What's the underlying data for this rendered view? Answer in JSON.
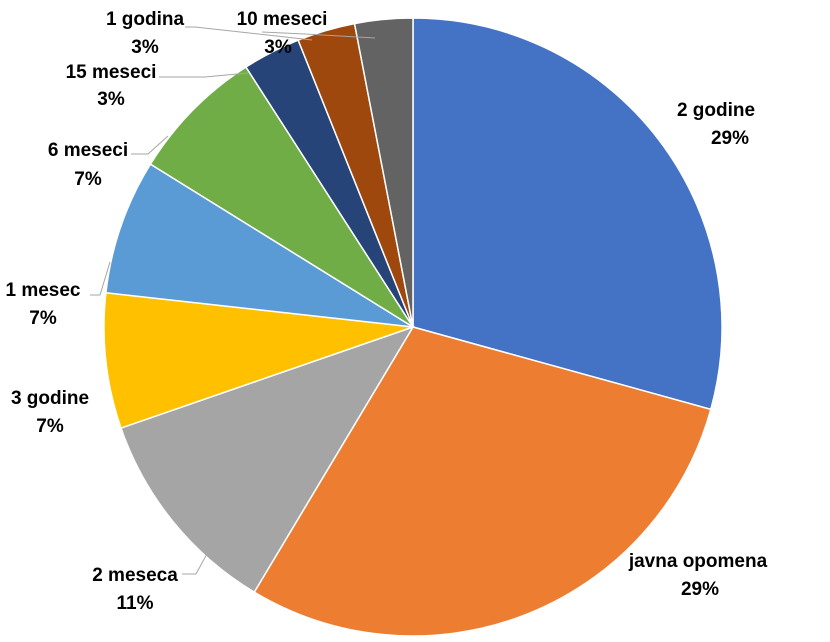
{
  "chart_data": {
    "type": "pie",
    "title": "",
    "legend": "none",
    "slices": [
      {
        "name": "2 godine",
        "value": 29,
        "label": "29%",
        "color": "#4472C4"
      },
      {
        "name": "javna opomena",
        "value": 29,
        "label": "29%",
        "color": "#ED7D31"
      },
      {
        "name": "2 meseca",
        "value": 11,
        "label": "11%",
        "color": "#A5A5A5"
      },
      {
        "name": "3 godine",
        "value": 7,
        "label": "7%",
        "color": "#FFC000"
      },
      {
        "name": "1 mesec",
        "value": 7,
        "label": "7%",
        "color": "#5B9BD5"
      },
      {
        "name": "6 meseci",
        "value": 7,
        "label": "7%",
        "color": "#70AD47"
      },
      {
        "name": "15 meseci",
        "value": 3,
        "label": "3%",
        "color": "#264478"
      },
      {
        "name": "1 godina",
        "value": 3,
        "label": "3%",
        "color": "#9E480E"
      },
      {
        "name": "10 meseci",
        "value": 3,
        "label": "3%",
        "color": "#636363"
      }
    ]
  }
}
